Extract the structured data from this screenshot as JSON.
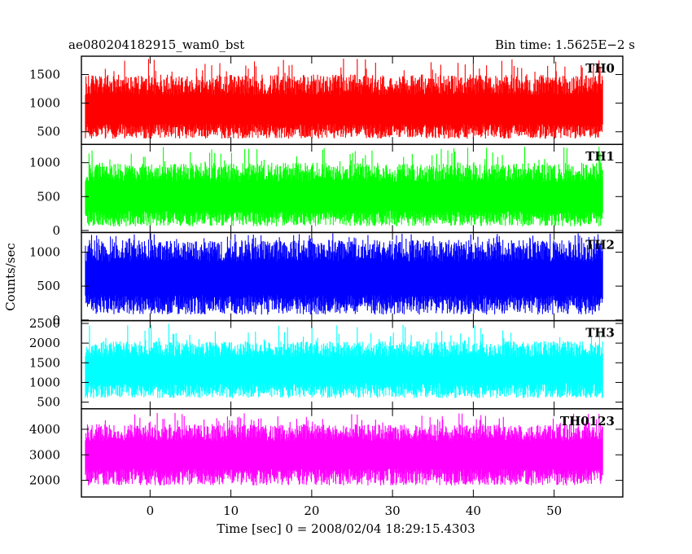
{
  "chart_data": {
    "type": "line",
    "title_left": "ae080204182915_wam0_bst",
    "title_right": "Bin time: 1.5625E−2 s",
    "xlabel": "Time [sec] 0 = 2008/02/04 18:29:15.4303",
    "ylabel": "Counts/sec",
    "xlim": [
      -8.5,
      58.5
    ],
    "data_xrange": [
      -8,
      56
    ],
    "xticks": [
      0,
      10,
      20,
      30,
      40,
      50
    ],
    "xtick_labels": [
      "0",
      "10",
      "20",
      "30",
      "40",
      "50"
    ],
    "grid": false,
    "panels": [
      {
        "name": "TH0",
        "color": "#ff0000",
        "ylim": [
          280,
          1820
        ],
        "yticks": [
          500,
          1000,
          1500
        ],
        "ytick_labels": [
          "500",
          "1000",
          "1500"
        ],
        "typical_min": 380,
        "typical_max": 1500,
        "peak_max": 1780,
        "mean": 850
      },
      {
        "name": "TH1",
        "color": "#00ff00",
        "ylim": [
          -30,
          1270
        ],
        "yticks": [
          0,
          500,
          1000
        ],
        "ytick_labels": [
          "0",
          "500",
          "1000"
        ],
        "typical_min": 60,
        "typical_max": 1000,
        "peak_max": 1240,
        "mean": 480
      },
      {
        "name": "TH2",
        "color": "#0000ff",
        "ylim": [
          -10,
          1290
        ],
        "yticks": [
          0,
          500,
          1000
        ],
        "ytick_labels": [
          "0",
          "500",
          "1000"
        ],
        "typical_min": 80,
        "typical_max": 1180,
        "peak_max": 1280,
        "mean": 600
      },
      {
        "name": "TH3",
        "color": "#00ffff",
        "ylim": [
          330,
          2570
        ],
        "yticks": [
          500,
          1000,
          1500,
          2000,
          2500
        ],
        "ytick_labels": [
          "500",
          "1000",
          "1500",
          "2000",
          "2500"
        ],
        "typical_min": 600,
        "typical_max": 2050,
        "peak_max": 2500,
        "mean": 1300
      },
      {
        "name": "TH0123",
        "color": "#ff00ff",
        "ylim": [
          1350,
          4800
        ],
        "yticks": [
          2000,
          3000,
          4000
        ],
        "ytick_labels": [
          "2000",
          "3000",
          "4000"
        ],
        "typical_min": 1800,
        "typical_max": 4200,
        "peak_max": 4650,
        "mean": 3000
      }
    ]
  }
}
